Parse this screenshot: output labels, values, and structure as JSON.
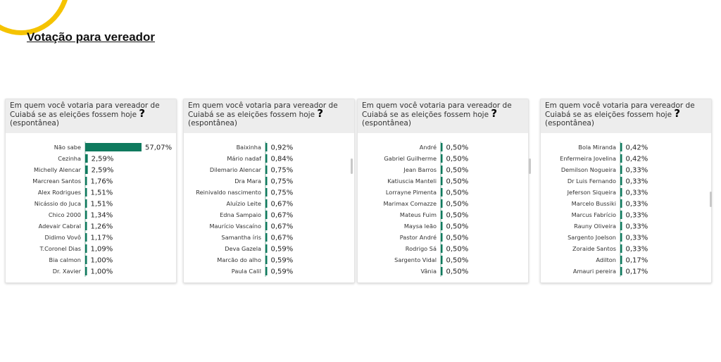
{
  "page": {
    "title": "Votação para vereador"
  },
  "panels": [
    {
      "title_lines": [
        "Em quem você votaria para vereador de",
        "Cuiabá se as eleições fossem hoje",
        "(espontânea)"
      ]
    },
    {
      "title_lines": [
        "Em quem você votaria para vereador de",
        "Cuiabá se as eleições fossem hoje",
        "(espontânea)"
      ]
    },
    {
      "title_lines": [
        "Em quem você votaria para vereador de",
        "Cuiabá se as eleições fossem hoje",
        "(espontânea)"
      ]
    },
    {
      "title_lines": [
        "Em quem você votaria para vereador de",
        "Cuiabá se as eleições fossem hoje",
        "(espontânea)"
      ]
    }
  ],
  "question_mark": "?",
  "colors": {
    "bar": "#0f7a5e",
    "accent": "#f5c300",
    "header_bg": "#ededed"
  },
  "chart_data": [
    {
      "type": "bar",
      "orientation": "horizontal",
      "categories": [
        "Não sabe",
        "Cezinha",
        "Michelly Alencar",
        "Marcrean Santos",
        "Alex Rodrigues",
        "Nicássio do Juca",
        "Chico 2000",
        "Adevair Cabral",
        "Didimo Vovô",
        "T.Coronel Dias",
        "Bia calmon",
        "Dr. Xavier"
      ],
      "values": [
        57.07,
        2.59,
        2.59,
        1.76,
        1.51,
        1.51,
        1.34,
        1.26,
        1.17,
        1.09,
        1.0,
        1.0
      ],
      "labels": [
        "57,07%",
        "2,59%",
        "2,59%",
        "1,76%",
        "1,51%",
        "1,51%",
        "1,34%",
        "1,26%",
        "1,17%",
        "1,09%",
        "1,00%",
        "1,00%"
      ],
      "xlim": [
        0,
        57.07
      ]
    },
    {
      "type": "bar",
      "orientation": "horizontal",
      "categories": [
        "Baixinha",
        "Mário nadaf",
        "Dilemario Alencar",
        "Dra Mara",
        "Reinivaldo nascimento",
        "Aluízio Leite",
        "Edna Sampaio",
        "Maurício Vascaíno",
        "Samantha íris",
        "Deva Gazela",
        "Marcão do alho",
        "Paula Calil"
      ],
      "values": [
        0.92,
        0.84,
        0.75,
        0.75,
        0.75,
        0.67,
        0.67,
        0.67,
        0.67,
        0.59,
        0.59,
        0.59
      ],
      "labels": [
        "0,92%",
        "0,84%",
        "0,75%",
        "0,75%",
        "0,75%",
        "0,67%",
        "0,67%",
        "0,67%",
        "0,67%",
        "0,59%",
        "0,59%",
        "0,59%"
      ],
      "xlim": [
        0,
        57.07
      ]
    },
    {
      "type": "bar",
      "orientation": "horizontal",
      "categories": [
        "André",
        "Gabriel Guilherme",
        "Jean Barros",
        "Katiuscia Manteli",
        "Lorrayne Pimenta",
        "Marimax Comazze",
        "Mateus Fuim",
        "Maysa leão",
        "Pastor André",
        "Rodrigo Sá",
        "Sargento Vidal",
        "Vânia"
      ],
      "values": [
        0.5,
        0.5,
        0.5,
        0.5,
        0.5,
        0.5,
        0.5,
        0.5,
        0.5,
        0.5,
        0.5,
        0.5
      ],
      "labels": [
        "0,50%",
        "0,50%",
        "0,50%",
        "0,50%",
        "0,50%",
        "0,50%",
        "0,50%",
        "0,50%",
        "0,50%",
        "0,50%",
        "0,50%",
        "0,50%"
      ],
      "xlim": [
        0,
        57.07
      ]
    },
    {
      "type": "bar",
      "orientation": "horizontal",
      "categories": [
        "Bola Miranda",
        "Enfermeira Jovelina",
        "Demilson Nogueira",
        "Dr Luis Fernando",
        "Jeferson Siqueira",
        "Marcelo Bussiki",
        "Marcus Fabrício",
        "Rauny Oliveira",
        "Sargento Joelson",
        "Zoraide Santos",
        "Adilton",
        "Amauri pereira"
      ],
      "values": [
        0.42,
        0.42,
        0.33,
        0.33,
        0.33,
        0.33,
        0.33,
        0.33,
        0.33,
        0.33,
        0.17,
        0.17
      ],
      "labels": [
        "0,42%",
        "0,42%",
        "0,33%",
        "0,33%",
        "0,33%",
        "0,33%",
        "0,33%",
        "0,33%",
        "0,33%",
        "0,33%",
        "0,17%",
        "0,17%"
      ],
      "xlim": [
        0,
        57.07
      ]
    }
  ]
}
